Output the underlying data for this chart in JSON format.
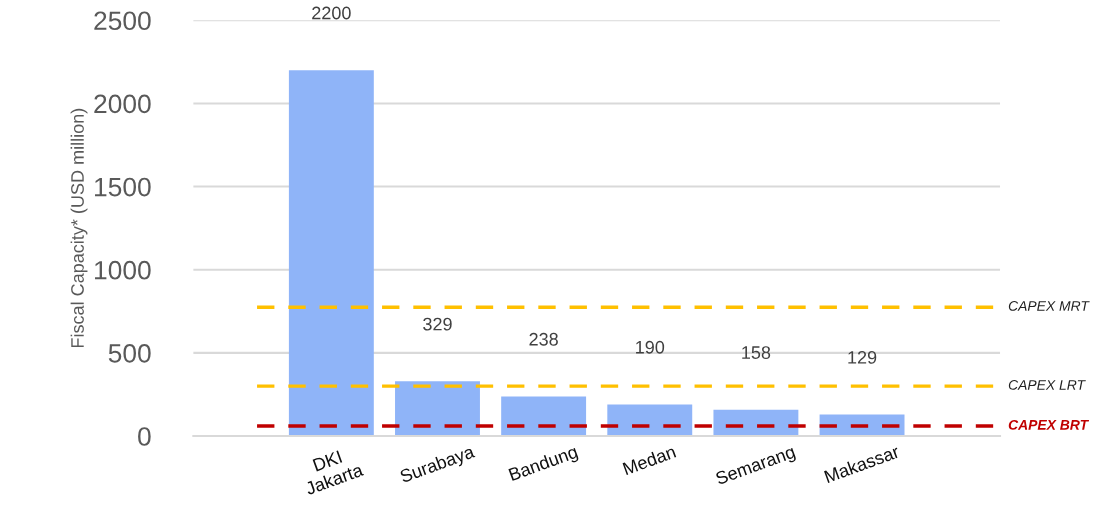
{
  "chart_data": {
    "type": "bar",
    "ylabel": "Fiscal Capacity* (USD million)",
    "categories": [
      "DKI\nJakarta",
      "Surabaya",
      "Bandung",
      "Medan",
      "Semarang",
      "Makassar"
    ],
    "values": [
      2200,
      329,
      238,
      190,
      158,
      129
    ],
    "color": "#8fb4f8",
    "data_labels": true,
    "ylim": [
      0,
      2500
    ],
    "yticks": [
      0,
      500,
      1000,
      1500,
      2000,
      2500
    ],
    "grid": "y",
    "ref_lines": [
      {
        "axis": "y",
        "value": 775,
        "label": "CAPEX MRT",
        "color": "#ffc000",
        "line_style": "dashed"
      },
      {
        "axis": "y",
        "value": 300,
        "label": "CAPEX LRT",
        "color": "#ffc000",
        "line_style": "dashed"
      },
      {
        "axis": "y",
        "value": 60,
        "label": "CAPEX BRT",
        "color": "#c00000",
        "line_style": "dashed"
      }
    ]
  }
}
